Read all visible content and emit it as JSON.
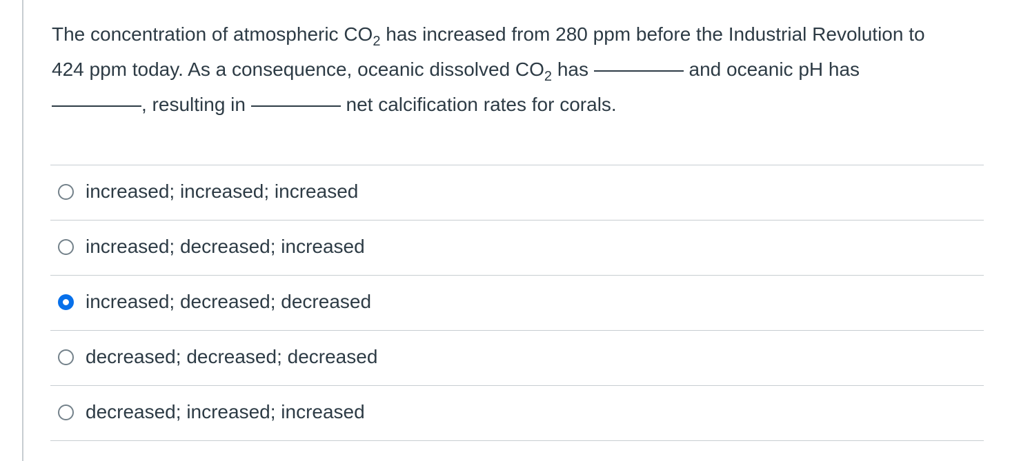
{
  "question": {
    "part1": "The concentration of atmospheric CO",
    "sub1": "2",
    "part2": " has increased from 280 ppm before the Industrial Revolution to 424 ppm today.  As a consequence, oceanic dissolved CO",
    "sub2": "2",
    "part3": " has ",
    "part4": " and oceanic pH has ",
    "part5": ", resulting in ",
    "part6": " net calcification rates for corals."
  },
  "answers": [
    {
      "label": "increased; increased; increased",
      "selected": false
    },
    {
      "label": "increased; decreased; increased",
      "selected": false
    },
    {
      "label": "increased; decreased; decreased",
      "selected": true
    },
    {
      "label": "decreased; decreased; decreased",
      "selected": false
    },
    {
      "label": "decreased; increased; increased",
      "selected": false
    }
  ],
  "colors": {
    "text": "#2d3b45",
    "selected_radio": "#0770ea",
    "divider": "#c7cdd1"
  }
}
